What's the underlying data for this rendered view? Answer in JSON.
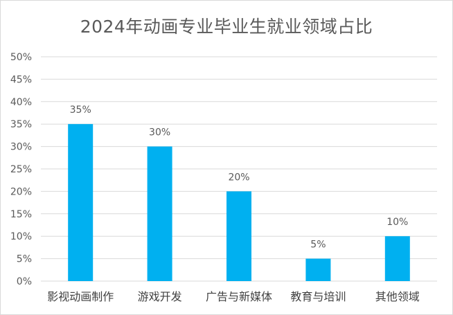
{
  "chart_data": {
    "type": "bar",
    "title": "2024年动画专业毕业生就业领域占比",
    "categories": [
      "影视动画制作",
      "游戏开发",
      "广告与新媒体",
      "教育与培训",
      "其他领域"
    ],
    "series": [
      {
        "values": [
          35,
          30,
          20,
          5,
          10
        ]
      }
    ],
    "data_labels": [
      "35%",
      "30%",
      "20%",
      "5%",
      "10%"
    ],
    "y_ticks": [
      "0%",
      "5%",
      "10%",
      "15%",
      "20%",
      "25%",
      "30%",
      "35%",
      "40%",
      "45%",
      "50%"
    ],
    "ylim": [
      0,
      50
    ],
    "y_unit": "%",
    "grid": true,
    "legend": "none",
    "colors": {
      "bar": "#00B0F0",
      "grid": "#d9d9d9",
      "text": "#595959"
    }
  }
}
